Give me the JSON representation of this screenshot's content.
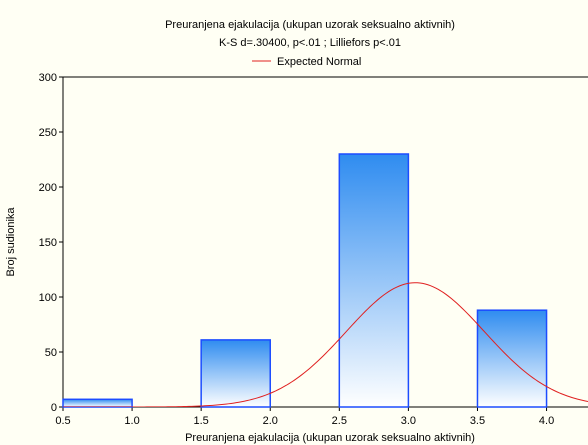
{
  "chart_data": {
    "type": "bar",
    "title": "Preuranjena ejakulacija (ukupan uzorak seksualno aktivnih)",
    "subtitle": "K-S d=.30400, p<.01 ; Lilliefors p<.01",
    "xlabel": "Preuranjena ejakulacija (ukupan uzorak seksualno aktivnih)",
    "ylabel": "Broj sudionika",
    "legend": {
      "label": "Expected Normal",
      "position": "top-center"
    },
    "x_ticks": [
      "0.5",
      "1.0",
      "1.5",
      "2.0",
      "2.5",
      "3.0",
      "3.5",
      "4.0"
    ],
    "y_ticks": [
      "0",
      "50",
      "100",
      "150",
      "200",
      "250",
      "300"
    ],
    "xlim": [
      0.5,
      4.3
    ],
    "ylim": [
      0,
      300
    ],
    "bins": [
      {
        "x0": 0.5,
        "x1": 1.0,
        "value": 7
      },
      {
        "x0": 1.5,
        "x1": 2.0,
        "value": 61
      },
      {
        "x0": 2.5,
        "x1": 3.0,
        "value": 230
      },
      {
        "x0": 3.5,
        "x1": 4.0,
        "value": 88
      }
    ],
    "normal_curve": {
      "mean": 3.05,
      "peak": 113,
      "sd": 0.5
    },
    "colors": {
      "bar_stroke": "#1c4cff",
      "bar_top": "#2f8cf0",
      "bar_bottom": "#ffffff",
      "curve": "#e02020",
      "background": "#fffff4"
    }
  }
}
